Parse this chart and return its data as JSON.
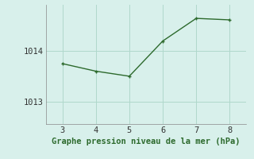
{
  "x": [
    3,
    4,
    5,
    6,
    7,
    8
  ],
  "y": [
    1013.75,
    1013.6,
    1013.5,
    1014.2,
    1014.65,
    1014.62
  ],
  "line_color": "#2d6a2d",
  "marker_color": "#2d6a2d",
  "bg_color": "#d8f0eb",
  "grid_color": "#b0d8cc",
  "xlabel": "Graphe pression niveau de la mer (hPa)",
  "xlabel_color": "#2d6a2d",
  "xlim": [
    2.5,
    8.5
  ],
  "ylim": [
    1012.55,
    1014.92
  ],
  "xticks": [
    3,
    4,
    5,
    6,
    7,
    8
  ],
  "yticks": [
    1013,
    1014
  ],
  "label_fontsize": 7.5,
  "tick_fontsize": 7.5,
  "line_width": 1.0,
  "marker_size": 2.5
}
